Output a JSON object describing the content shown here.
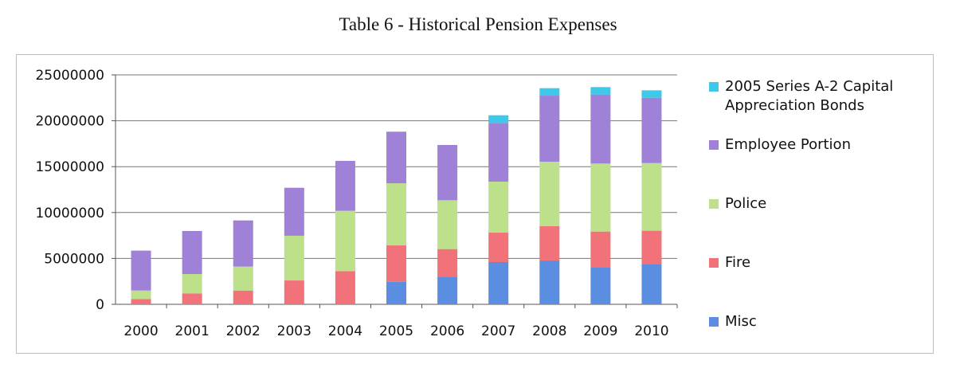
{
  "chart_data": {
    "type": "bar",
    "stacked": true,
    "title": "Table 6 - Historical Pension Expenses",
    "xlabel": "",
    "ylabel": "",
    "ylim": [
      0,
      25000000
    ],
    "yticks": [
      "0",
      "5000000",
      "10000000",
      "15000000",
      "20000000",
      "25000000"
    ],
    "ytick_values": [
      0,
      5000000,
      10000000,
      15000000,
      20000000,
      25000000
    ],
    "grid": true,
    "legend_position": "right",
    "categories": [
      "2000",
      "2001",
      "2002",
      "2003",
      "2004",
      "2005",
      "2006",
      "2007",
      "2008",
      "2009",
      "2010"
    ],
    "series": [
      {
        "name": "Misc",
        "color": "#5b8de0",
        "values": [
          0,
          0,
          0,
          0,
          0,
          2460000,
          3010000,
          4600000,
          4770000,
          4050000,
          4340000
        ]
      },
      {
        "name": "Fire",
        "color": "#f2727a",
        "values": [
          580000,
          1190000,
          1500000,
          2600000,
          3620000,
          3960000,
          3010000,
          3210000,
          3740000,
          3880000,
          3680000
        ]
      },
      {
        "name": "Police",
        "color": "#bde08a",
        "values": [
          920000,
          2110000,
          2610000,
          4870000,
          6570000,
          6770000,
          5320000,
          5560000,
          7030000,
          7410000,
          7370000
        ]
      },
      {
        "name": "Employee Portion",
        "color": "#9f82d8",
        "values": [
          4350000,
          4690000,
          5030000,
          5230000,
          5440000,
          5620000,
          6020000,
          6390000,
          7200000,
          7520000,
          7120000
        ]
      },
      {
        "name": "2005 Series A-2 Capital Appreciation Bonds",
        "color": "#3ec8ea",
        "values": [
          0,
          0,
          0,
          0,
          0,
          0,
          0,
          840000,
          810000,
          810000,
          810000
        ]
      }
    ],
    "legend": [
      "2005 Series A-2 Capital Appreciation Bonds",
      "Employee Portion",
      "Police",
      "Fire",
      "Misc"
    ]
  }
}
